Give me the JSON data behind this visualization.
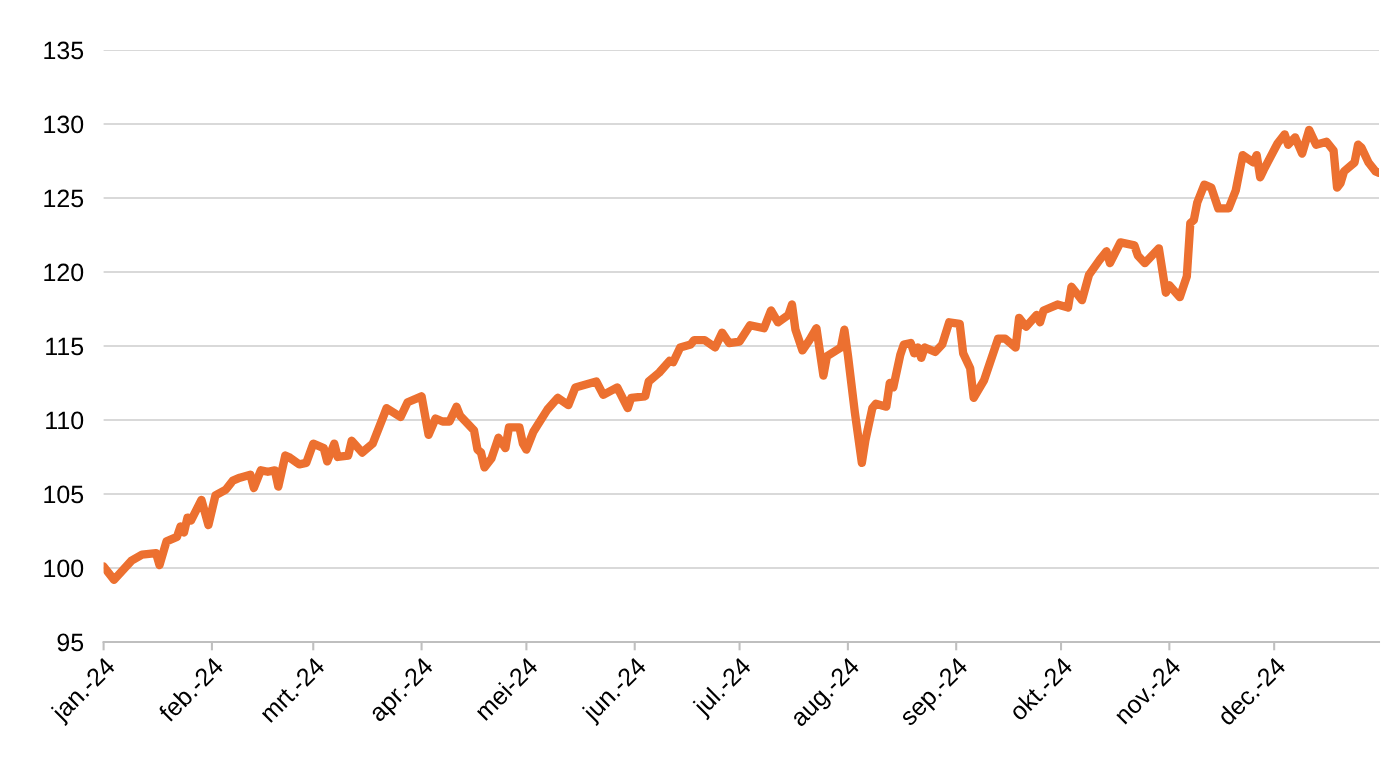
{
  "chart_data": {
    "type": "line",
    "x": [
      "2024-01-01",
      "2024-01-04",
      "2024-01-09",
      "2024-01-12",
      "2024-01-16",
      "2024-01-17",
      "2024-01-19",
      "2024-01-22",
      "2024-01-23",
      "2024-01-24",
      "2024-01-25",
      "2024-01-26",
      "2024-01-29",
      "2024-01-31",
      "2024-02-02",
      "2024-02-05",
      "2024-02-07",
      "2024-02-09",
      "2024-02-12",
      "2024-02-13",
      "2024-02-15",
      "2024-02-17",
      "2024-02-19",
      "2024-02-20",
      "2024-02-22",
      "2024-02-23",
      "2024-02-26",
      "2024-02-28",
      "2024-03-01",
      "2024-03-04",
      "2024-03-05",
      "2024-03-07",
      "2024-03-08",
      "2024-03-11",
      "2024-03-12",
      "2024-03-15",
      "2024-03-18",
      "2024-03-22",
      "2024-03-26",
      "2024-03-28",
      "2024-04-01",
      "2024-04-03",
      "2024-04-05",
      "2024-04-07",
      "2024-04-09",
      "2024-04-11",
      "2024-04-12",
      "2024-04-16",
      "2024-04-17",
      "2024-04-18",
      "2024-04-19",
      "2024-04-21",
      "2024-04-23",
      "2024-04-25",
      "2024-04-26",
      "2024-04-29",
      "2024-04-30",
      "2024-05-01",
      "2024-05-03",
      "2024-05-07",
      "2024-05-10",
      "2024-05-13",
      "2024-05-15",
      "2024-05-18",
      "2024-05-21",
      "2024-05-23",
      "2024-05-27",
      "2024-05-30",
      "2024-05-31",
      "2024-06-04",
      "2024-06-05",
      "2024-06-08",
      "2024-06-11",
      "2024-06-12",
      "2024-06-14",
      "2024-06-17",
      "2024-06-18",
      "2024-06-21",
      "2024-06-24",
      "2024-06-26",
      "2024-06-28",
      "2024-07-01",
      "2024-07-04",
      "2024-07-08",
      "2024-07-10",
      "2024-07-12",
      "2024-07-15",
      "2024-07-16",
      "2024-07-17",
      "2024-07-19",
      "2024-07-21",
      "2024-07-23",
      "2024-07-25",
      "2024-07-26",
      "2024-07-30",
      "2024-07-31",
      "2024-08-01",
      "2024-08-03",
      "2024-08-05",
      "2024-08-06",
      "2024-08-08",
      "2024-08-09",
      "2024-08-12",
      "2024-08-13",
      "2024-08-14",
      "2024-08-16",
      "2024-08-17",
      "2024-08-19",
      "2024-08-20",
      "2024-08-21",
      "2024-08-22",
      "2024-08-23",
      "2024-08-26",
      "2024-08-28",
      "2024-08-30",
      "2024-09-02",
      "2024-09-03",
      "2024-09-05",
      "2024-09-06",
      "2024-09-09",
      "2024-09-10",
      "2024-09-13",
      "2024-09-15",
      "2024-09-18",
      "2024-09-19",
      "2024-09-21",
      "2024-09-24",
      "2024-09-25",
      "2024-09-26",
      "2024-09-30",
      "2024-10-03",
      "2024-10-04",
      "2024-10-07",
      "2024-10-09",
      "2024-10-12",
      "2024-10-14",
      "2024-10-15",
      "2024-10-18",
      "2024-10-22",
      "2024-10-23",
      "2024-10-25",
      "2024-10-29",
      "2024-10-31",
      "2024-11-01",
      "2024-11-04",
      "2024-11-06",
      "2024-11-07",
      "2024-11-08",
      "2024-11-09",
      "2024-11-11",
      "2024-11-13",
      "2024-11-15",
      "2024-11-18",
      "2024-11-20",
      "2024-11-22",
      "2024-11-25",
      "2024-11-26",
      "2024-11-27",
      "2024-11-28",
      "2024-12-02",
      "2024-12-04",
      "2024-12-05",
      "2024-12-07",
      "2024-12-09",
      "2024-12-11",
      "2024-12-13",
      "2024-12-16",
      "2024-12-18",
      "2024-12-19",
      "2024-12-20",
      "2024-12-21",
      "2024-12-24",
      "2024-12-25",
      "2024-12-26",
      "2024-12-28",
      "2024-12-30",
      "2024-12-31"
    ],
    "series": [
      {
        "color": "#ec7030",
        "values": [
          100.1,
          99.2,
          100.5,
          100.9,
          101.0,
          100.2,
          101.8,
          102.1,
          102.8,
          102.4,
          103.4,
          103.2,
          104.6,
          102.9,
          104.9,
          105.3,
          105.9,
          106.1,
          106.3,
          105.4,
          106.6,
          106.5,
          106.6,
          105.5,
          107.6,
          107.5,
          107.0,
          107.1,
          108.4,
          108.1,
          107.2,
          108.4,
          107.5,
          107.6,
          108.6,
          107.8,
          108.4,
          110.8,
          110.2,
          111.2,
          111.6,
          109.0,
          110.1,
          109.9,
          109.9,
          110.9,
          110.3,
          109.3,
          108.0,
          107.8,
          106.8,
          107.4,
          108.8,
          108.1,
          109.5,
          109.5,
          108.4,
          108.0,
          109.2,
          110.7,
          111.5,
          111.0,
          112.2,
          112.4,
          112.6,
          111.7,
          112.2,
          110.8,
          111.5,
          111.6,
          112.6,
          113.2,
          114.0,
          113.9,
          114.9,
          115.1,
          115.4,
          115.4,
          114.9,
          115.9,
          115.2,
          115.3,
          116.4,
          116.2,
          117.4,
          116.6,
          117.1,
          117.8,
          116.1,
          114.7,
          115.4,
          116.2,
          113.0,
          114.3,
          114.9,
          116.1,
          114.4,
          110.5,
          107.1,
          108.6,
          110.8,
          111.1,
          110.9,
          112.5,
          112.2,
          114.4,
          115.1,
          115.2,
          114.5,
          114.9,
          114.2,
          114.9,
          114.6,
          115.1,
          116.6,
          116.5,
          114.5,
          113.5,
          111.5,
          112.7,
          113.4,
          115.5,
          115.5,
          114.9,
          116.9,
          116.3,
          117.1,
          116.6,
          117.4,
          117.8,
          117.6,
          119.0,
          118.1,
          119.8,
          120.8,
          121.4,
          120.6,
          122.0,
          121.8,
          121.1,
          120.6,
          121.6,
          118.6,
          119.1,
          118.3,
          119.7,
          123.3,
          123.5,
          124.7,
          125.9,
          125.7,
          124.3,
          124.3,
          125.5,
          127.9,
          127.4,
          127.9,
          126.4,
          126.9,
          128.7,
          129.3,
          128.6,
          129.1,
          128.0,
          129.6,
          128.6,
          128.8,
          128.2,
          125.7,
          126.0,
          126.8,
          127.4,
          128.6,
          128.4,
          127.4,
          126.8,
          126.7
        ]
      }
    ],
    "xlim": [
      "2024-01-01",
      "2024-12-31"
    ],
    "xticks": [
      {
        "value": "2024-01-01",
        "label": "jan.-24"
      },
      {
        "value": "2024-02-01",
        "label": "feb.-24"
      },
      {
        "value": "2024-03-01",
        "label": "mrt.-24"
      },
      {
        "value": "2024-04-01",
        "label": "apr.-24"
      },
      {
        "value": "2024-05-01",
        "label": "mei-24"
      },
      {
        "value": "2024-06-01",
        "label": "jun.-24"
      },
      {
        "value": "2024-07-01",
        "label": "jul.-24"
      },
      {
        "value": "2024-08-01",
        "label": "aug.-24"
      },
      {
        "value": "2024-09-01",
        "label": "sep.-24"
      },
      {
        "value": "2024-10-01",
        "label": "okt.-24"
      },
      {
        "value": "2024-11-01",
        "label": "nov.-24"
      },
      {
        "value": "2024-12-01",
        "label": "dec.-24"
      }
    ],
    "ylim": [
      95,
      135
    ],
    "yticks": [
      95,
      100,
      105,
      110,
      115,
      120,
      125,
      130,
      135
    ],
    "grid": "y",
    "marker": "none",
    "line_style": "solid"
  }
}
